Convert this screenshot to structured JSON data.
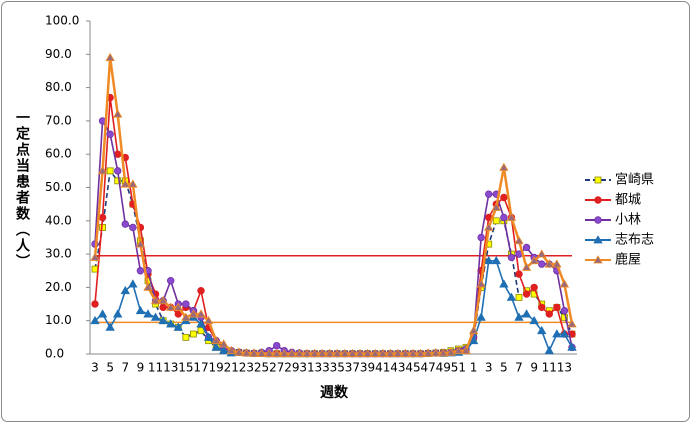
{
  "chart_data": {
    "type": "line",
    "y_label": "一定点当患者数（人）",
    "x_label": "週数",
    "categories": [
      "3",
      null,
      "5",
      null,
      "7",
      null,
      "9",
      null,
      "11",
      null,
      "13",
      null,
      "15",
      null,
      "17",
      null,
      "19",
      null,
      "21",
      null,
      "23",
      null,
      "25",
      null,
      "27",
      null,
      "29",
      null,
      "31",
      null,
      "33",
      null,
      "35",
      null,
      "37",
      null,
      "39",
      null,
      "41",
      null,
      "43",
      null,
      "45",
      null,
      "47",
      null,
      "49",
      null,
      "51",
      null,
      "1",
      null,
      "3",
      null,
      "5",
      null,
      "7",
      null,
      "9",
      null,
      "11",
      null,
      "13",
      null
    ],
    "ylim": [
      0,
      100
    ],
    "yticks": [
      {
        "value": 0,
        "label": "0.0"
      },
      {
        "value": 10,
        "label": "10.0"
      },
      {
        "value": 20,
        "label": "20.0"
      },
      {
        "value": 30,
        "label": "30.0"
      },
      {
        "value": 40,
        "label": "40.0"
      },
      {
        "value": 50,
        "label": "50.0"
      },
      {
        "value": 60,
        "label": "60.0"
      },
      {
        "value": 70,
        "label": "70.0"
      },
      {
        "value": 80,
        "label": "80.0"
      },
      {
        "value": 90,
        "label": "90.0"
      },
      {
        "value": 100,
        "label": "100.0"
      }
    ],
    "grid": false,
    "legend": "right",
    "hlines": [
      {
        "value": 29.5,
        "color": "#e02020"
      },
      {
        "value": 9.5,
        "color": "#f08a24"
      }
    ],
    "series": [
      {
        "name": "宮崎県",
        "color": "#1f3a7a",
        "dash": true,
        "marker": "square",
        "marker_color": "#ffff00",
        "values": [
          25.5,
          38,
          55,
          52,
          52,
          45,
          34,
          22,
          15,
          10,
          9,
          8,
          5,
          6,
          7,
          4,
          2,
          1,
          0.5,
          0.5,
          0.3,
          0.2,
          0.2,
          0.1,
          0.1,
          0.1,
          0.1,
          0.1,
          0.1,
          0.1,
          0.1,
          0.1,
          0.1,
          0.1,
          0.1,
          0.1,
          0.1,
          0.1,
          0.1,
          0.1,
          0.1,
          0.1,
          0.1,
          0.1,
          0.2,
          0.3,
          0.5,
          1,
          1.5,
          2,
          5,
          20,
          33,
          40,
          40,
          30,
          17,
          19,
          18,
          15,
          13,
          14,
          11,
          6
        ]
      },
      {
        "name": "都城",
        "color": "#e02020",
        "dash": false,
        "marker": "circle",
        "marker_color": "#e02020",
        "values": [
          15,
          41,
          77,
          60,
          59,
          45,
          38,
          24,
          18,
          14,
          14,
          12,
          14,
          13,
          19,
          8,
          4,
          2,
          1,
          0.5,
          0.3,
          0.2,
          0.2,
          0.1,
          0.1,
          0.1,
          0.1,
          0.1,
          0.1,
          0.1,
          0.1,
          0.1,
          0.1,
          0.1,
          0.1,
          0.1,
          0.1,
          0.1,
          0.1,
          0.1,
          0.1,
          0.1,
          0.1,
          0.1,
          0.2,
          0.3,
          0.3,
          0.5,
          1,
          1,
          5,
          25,
          41,
          45,
          47,
          41,
          24,
          18,
          20,
          14,
          12,
          14,
          6,
          6
        ]
      },
      {
        "name": "小林",
        "color": "#7030a0",
        "dash": false,
        "marker": "circle",
        "marker_color": "#8a4ad0",
        "values": [
          33,
          70,
          66,
          55,
          39,
          38,
          25,
          25,
          16,
          16,
          22,
          15,
          15,
          13,
          11,
          5,
          4,
          2,
          1,
          0.5,
          0.3,
          0.2,
          0.5,
          1,
          2.5,
          1,
          0.5,
          0.3,
          0.1,
          0.1,
          0.1,
          0.1,
          0.1,
          0.1,
          0.1,
          0.1,
          0.1,
          0.1,
          0.1,
          0.1,
          0.1,
          0.1,
          0.1,
          0.1,
          0.2,
          0.3,
          0.3,
          0.5,
          1,
          1.5,
          5,
          35,
          48,
          48,
          41,
          29,
          30,
          32,
          29,
          27,
          27,
          25,
          13,
          2
        ]
      },
      {
        "name": "志布志",
        "color": "#1f6fb4",
        "dash": false,
        "marker": "triangle",
        "marker_color": "#1f6fb4",
        "values": [
          10,
          12,
          8,
          12,
          19,
          21,
          13,
          12,
          11,
          10,
          9,
          8,
          10,
          11,
          9,
          5,
          2,
          1,
          0.3,
          0.5,
          0.3,
          0.2,
          0.2,
          0.1,
          0.1,
          0.1,
          0.1,
          0.1,
          0.1,
          0.1,
          0.1,
          0.1,
          0.1,
          0.1,
          0.1,
          0.1,
          0.1,
          0.1,
          0.1,
          0.1,
          0.1,
          0.1,
          0.1,
          0.1,
          0.2,
          0.3,
          0.2,
          0.3,
          0.5,
          1,
          4,
          11,
          28,
          28,
          21,
          17,
          11,
          12,
          10,
          7,
          1,
          6,
          6,
          2
        ]
      },
      {
        "name": "鹿屋",
        "color": "#f08a24",
        "dash": false,
        "marker": "triangle",
        "marker_color": "#9a6a7a",
        "values": [
          29,
          55,
          89,
          72,
          51,
          51,
          33,
          20,
          16,
          16,
          14,
          14,
          11,
          12,
          12,
          10,
          4,
          3,
          1,
          0.5,
          0.3,
          0.2,
          0.2,
          0.1,
          0.1,
          0.1,
          0.1,
          0.1,
          0.1,
          0.1,
          0.1,
          0.1,
          0.1,
          0.1,
          0.1,
          0.1,
          0.1,
          0.1,
          0.1,
          0.1,
          0.1,
          0.1,
          0.1,
          0.1,
          0.2,
          0.3,
          0.3,
          0.5,
          1,
          1,
          7,
          21,
          38,
          44,
          56,
          41,
          34,
          26,
          28,
          30,
          27,
          27,
          21,
          9
        ]
      }
    ]
  }
}
